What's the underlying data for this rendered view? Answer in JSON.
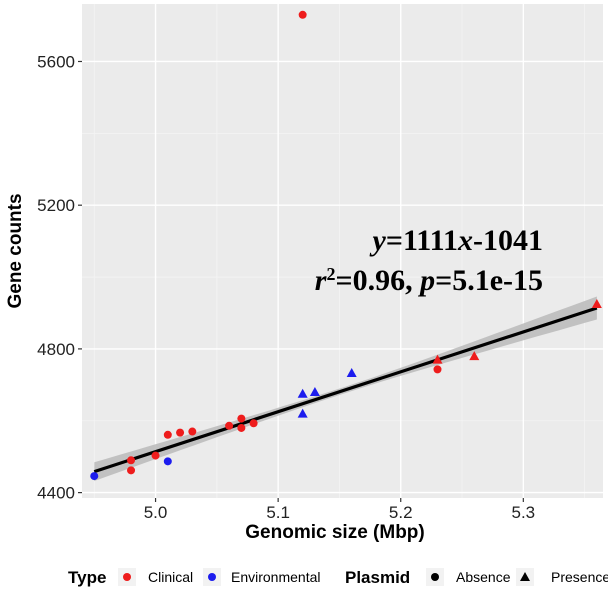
{
  "chart_data": {
    "type": "scatter",
    "xlabel": "Genomic size (Mbp)",
    "ylabel": "Gene counts",
    "xlim": [
      4.94,
      5.365
    ],
    "ylim": [
      4385,
      5760
    ],
    "xticks": [
      5.0,
      5.1,
      5.2,
      5.3
    ],
    "xtick_labels": [
      "5.0",
      "5.1",
      "5.2",
      "5.3"
    ],
    "yticks": [
      4400,
      4800,
      5200,
      5600
    ],
    "ytick_labels": [
      "4400",
      "4800",
      "5200",
      "5600"
    ],
    "grid": true,
    "legend_position": "bottom",
    "regression": {
      "slope": 1111,
      "intercept": -1041,
      "x_range": [
        4.95,
        5.36
      ],
      "ci_at_start": 26,
      "ci_at_mid": 9,
      "ci_at_end": 32,
      "equation_parts": [
        "y",
        "=1111",
        "x",
        "-1041"
      ],
      "stats_parts": [
        "r",
        "2",
        "=0.96, ",
        "p",
        "=5.1e-15"
      ]
    },
    "color_legend": {
      "title": "Type",
      "items": [
        {
          "label": "Clinical",
          "color": "#ee1c1c"
        },
        {
          "label": "Environmental",
          "color": "#1c1cee"
        }
      ]
    },
    "shape_legend": {
      "title": "Plasmid",
      "items": [
        {
          "label": "Absence",
          "shape": "circle"
        },
        {
          "label": "Presence",
          "shape": "triangle"
        }
      ]
    },
    "points": [
      {
        "x": 4.95,
        "y": 4446,
        "type": "Environmental",
        "plasmid": "Absence"
      },
      {
        "x": 4.98,
        "y": 4462,
        "type": "Clinical",
        "plasmid": "Absence"
      },
      {
        "x": 4.98,
        "y": 4490,
        "type": "Clinical",
        "plasmid": "Absence"
      },
      {
        "x": 5.0,
        "y": 4503,
        "type": "Clinical",
        "plasmid": "Absence"
      },
      {
        "x": 5.01,
        "y": 4487,
        "type": "Environmental",
        "plasmid": "Absence"
      },
      {
        "x": 5.01,
        "y": 4561,
        "type": "Clinical",
        "plasmid": "Absence"
      },
      {
        "x": 5.02,
        "y": 4567,
        "type": "Clinical",
        "plasmid": "Absence"
      },
      {
        "x": 5.03,
        "y": 4570,
        "type": "Clinical",
        "plasmid": "Absence"
      },
      {
        "x": 5.06,
        "y": 4586,
        "type": "Clinical",
        "plasmid": "Absence"
      },
      {
        "x": 5.07,
        "y": 4580,
        "type": "Clinical",
        "plasmid": "Absence"
      },
      {
        "x": 5.07,
        "y": 4606,
        "type": "Clinical",
        "plasmid": "Absence"
      },
      {
        "x": 5.08,
        "y": 4593,
        "type": "Clinical",
        "plasmid": "Absence"
      },
      {
        "x": 5.12,
        "y": 5730,
        "type": "Clinical",
        "plasmid": "Absence"
      },
      {
        "x": 5.12,
        "y": 4620,
        "type": "Environmental",
        "plasmid": "Presence"
      },
      {
        "x": 5.12,
        "y": 4675,
        "type": "Environmental",
        "plasmid": "Presence"
      },
      {
        "x": 5.13,
        "y": 4680,
        "type": "Environmental",
        "plasmid": "Presence"
      },
      {
        "x": 5.16,
        "y": 4733,
        "type": "Environmental",
        "plasmid": "Presence"
      },
      {
        "x": 5.23,
        "y": 4743,
        "type": "Clinical",
        "plasmid": "Absence"
      },
      {
        "x": 5.23,
        "y": 4770,
        "type": "Clinical",
        "plasmid": "Presence"
      },
      {
        "x": 5.26,
        "y": 4780,
        "type": "Clinical",
        "plasmid": "Presence"
      },
      {
        "x": 5.36,
        "y": 4925,
        "type": "Clinical",
        "plasmid": "Presence"
      }
    ]
  }
}
